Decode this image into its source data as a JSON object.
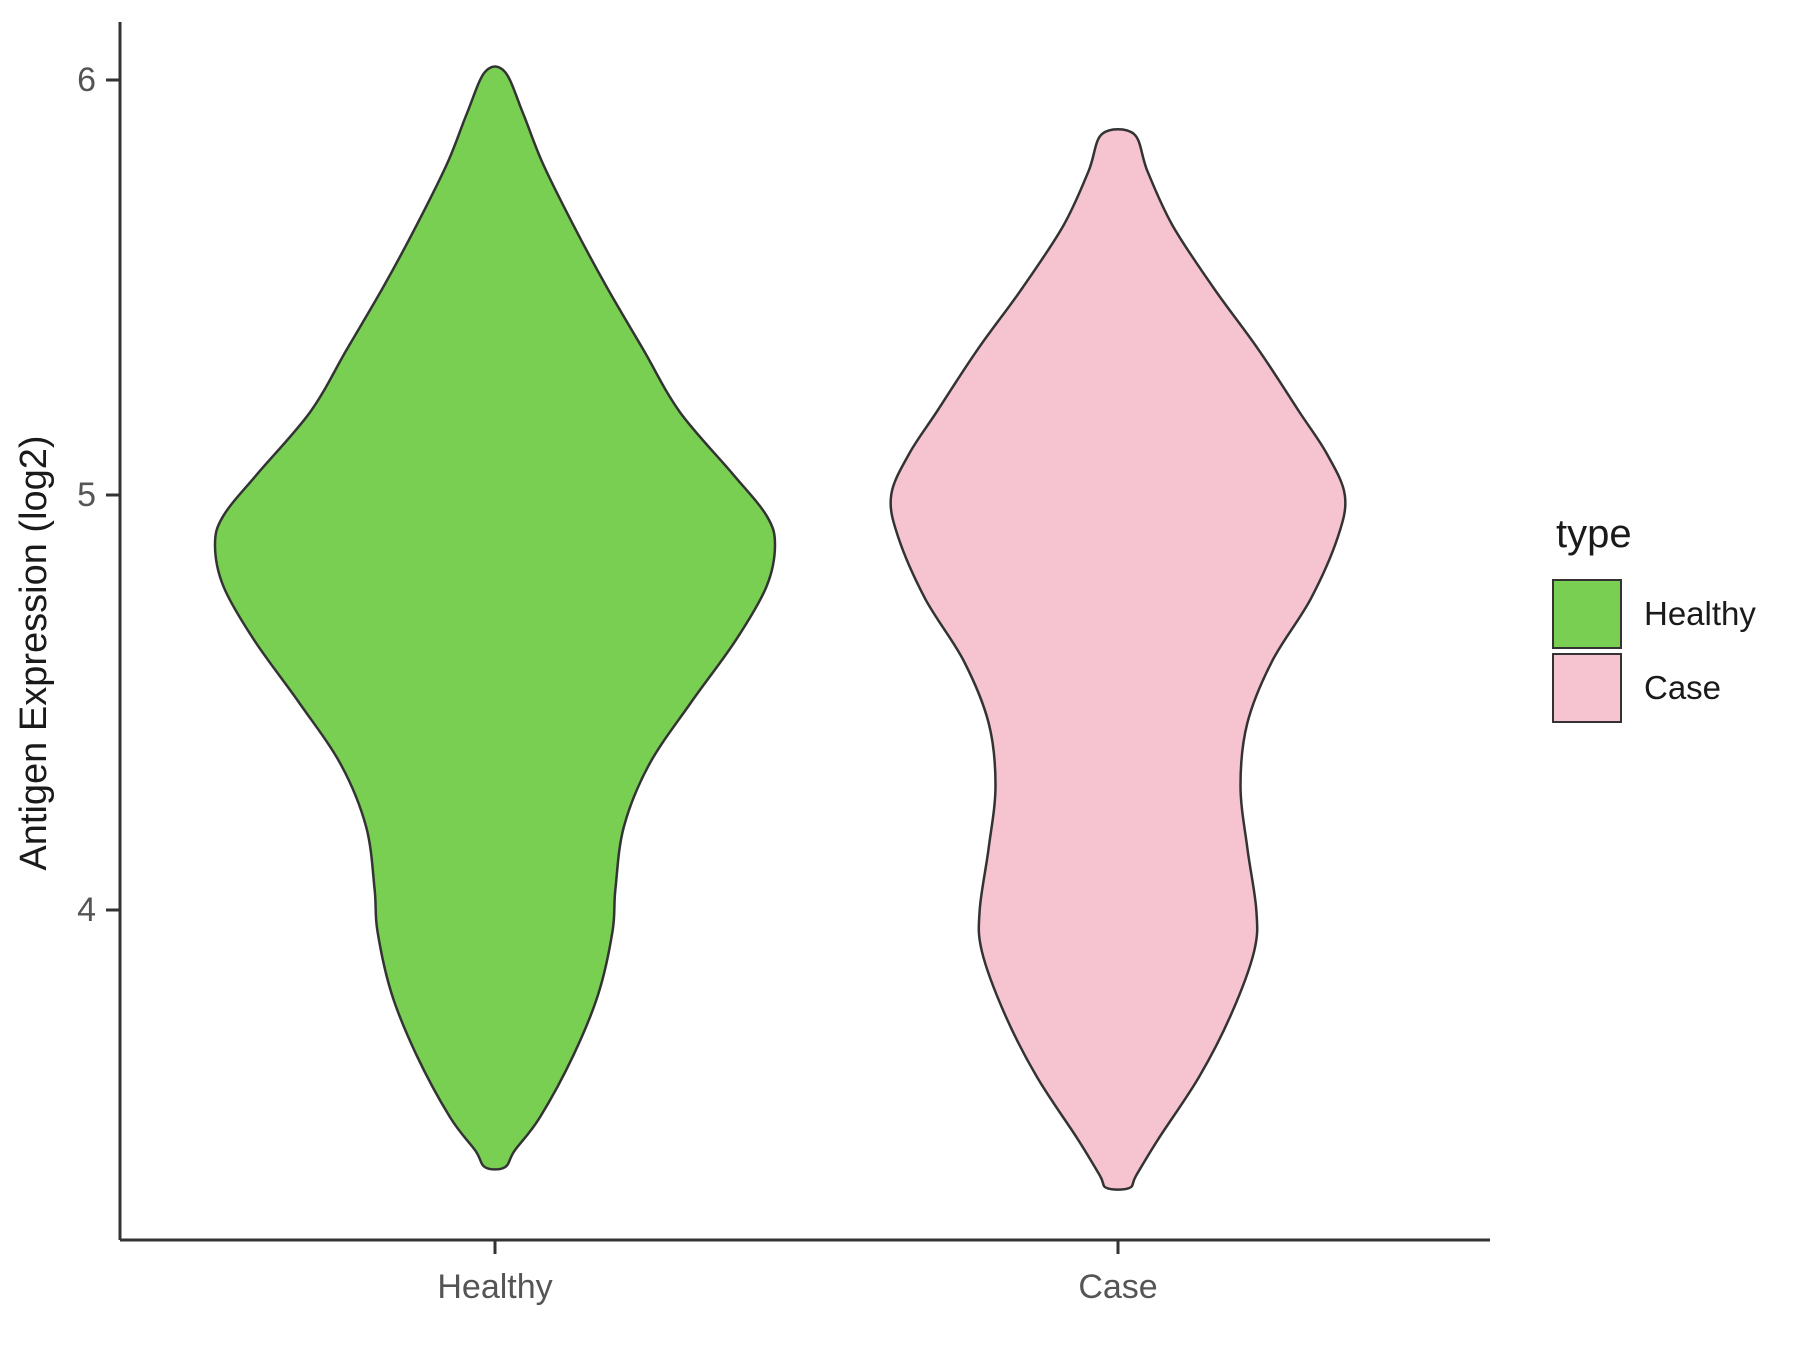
{
  "chart_data": {
    "type": "violin",
    "title": "",
    "xlabel": "",
    "ylabel": "Antigen Expression (log2)",
    "categories": [
      "Healthy",
      "Case"
    ],
    "y_ticks": [
      4,
      5,
      6
    ],
    "ylim": [
      3.2,
      6.13
    ],
    "grid": "off",
    "legend_position": "right",
    "legend": {
      "title": "type",
      "entries": [
        {
          "label": "Healthy",
          "color": "#79CF52"
        },
        {
          "label": "Case",
          "color": "#F6C3D0"
        }
      ]
    },
    "violins": [
      {
        "name": "Healthy",
        "fill": "#79CF52",
        "stroke": "#333333",
        "width_scale": 1.0,
        "profile": [
          [
            6.02,
            0.035
          ],
          [
            5.92,
            0.1
          ],
          [
            5.8,
            0.17
          ],
          [
            5.65,
            0.28
          ],
          [
            5.5,
            0.4
          ],
          [
            5.35,
            0.53
          ],
          [
            5.2,
            0.66
          ],
          [
            5.05,
            0.85
          ],
          [
            4.95,
            0.97
          ],
          [
            4.88,
            1.0
          ],
          [
            4.78,
            0.97
          ],
          [
            4.65,
            0.86
          ],
          [
            4.5,
            0.7
          ],
          [
            4.35,
            0.55
          ],
          [
            4.2,
            0.46
          ],
          [
            4.05,
            0.43
          ],
          [
            3.95,
            0.42
          ],
          [
            3.8,
            0.37
          ],
          [
            3.65,
            0.28
          ],
          [
            3.5,
            0.16
          ],
          [
            3.42,
            0.07
          ],
          [
            3.38,
            0.035
          ]
        ]
      },
      {
        "name": "Case",
        "fill": "#F6C3D0",
        "stroke": "#333333",
        "width_scale": 0.81,
        "profile": [
          [
            5.87,
            0.07
          ],
          [
            5.78,
            0.13
          ],
          [
            5.65,
            0.24
          ],
          [
            5.5,
            0.42
          ],
          [
            5.35,
            0.62
          ],
          [
            5.2,
            0.8
          ],
          [
            5.1,
            0.92
          ],
          [
            5.0,
            1.0
          ],
          [
            4.9,
            0.97
          ],
          [
            4.75,
            0.85
          ],
          [
            4.6,
            0.68
          ],
          [
            4.45,
            0.57
          ],
          [
            4.3,
            0.54
          ],
          [
            4.15,
            0.57
          ],
          [
            4.0,
            0.61
          ],
          [
            3.9,
            0.6
          ],
          [
            3.75,
            0.5
          ],
          [
            3.6,
            0.36
          ],
          [
            3.45,
            0.18
          ],
          [
            3.36,
            0.08
          ],
          [
            3.33,
            0.05
          ]
        ]
      }
    ]
  }
}
